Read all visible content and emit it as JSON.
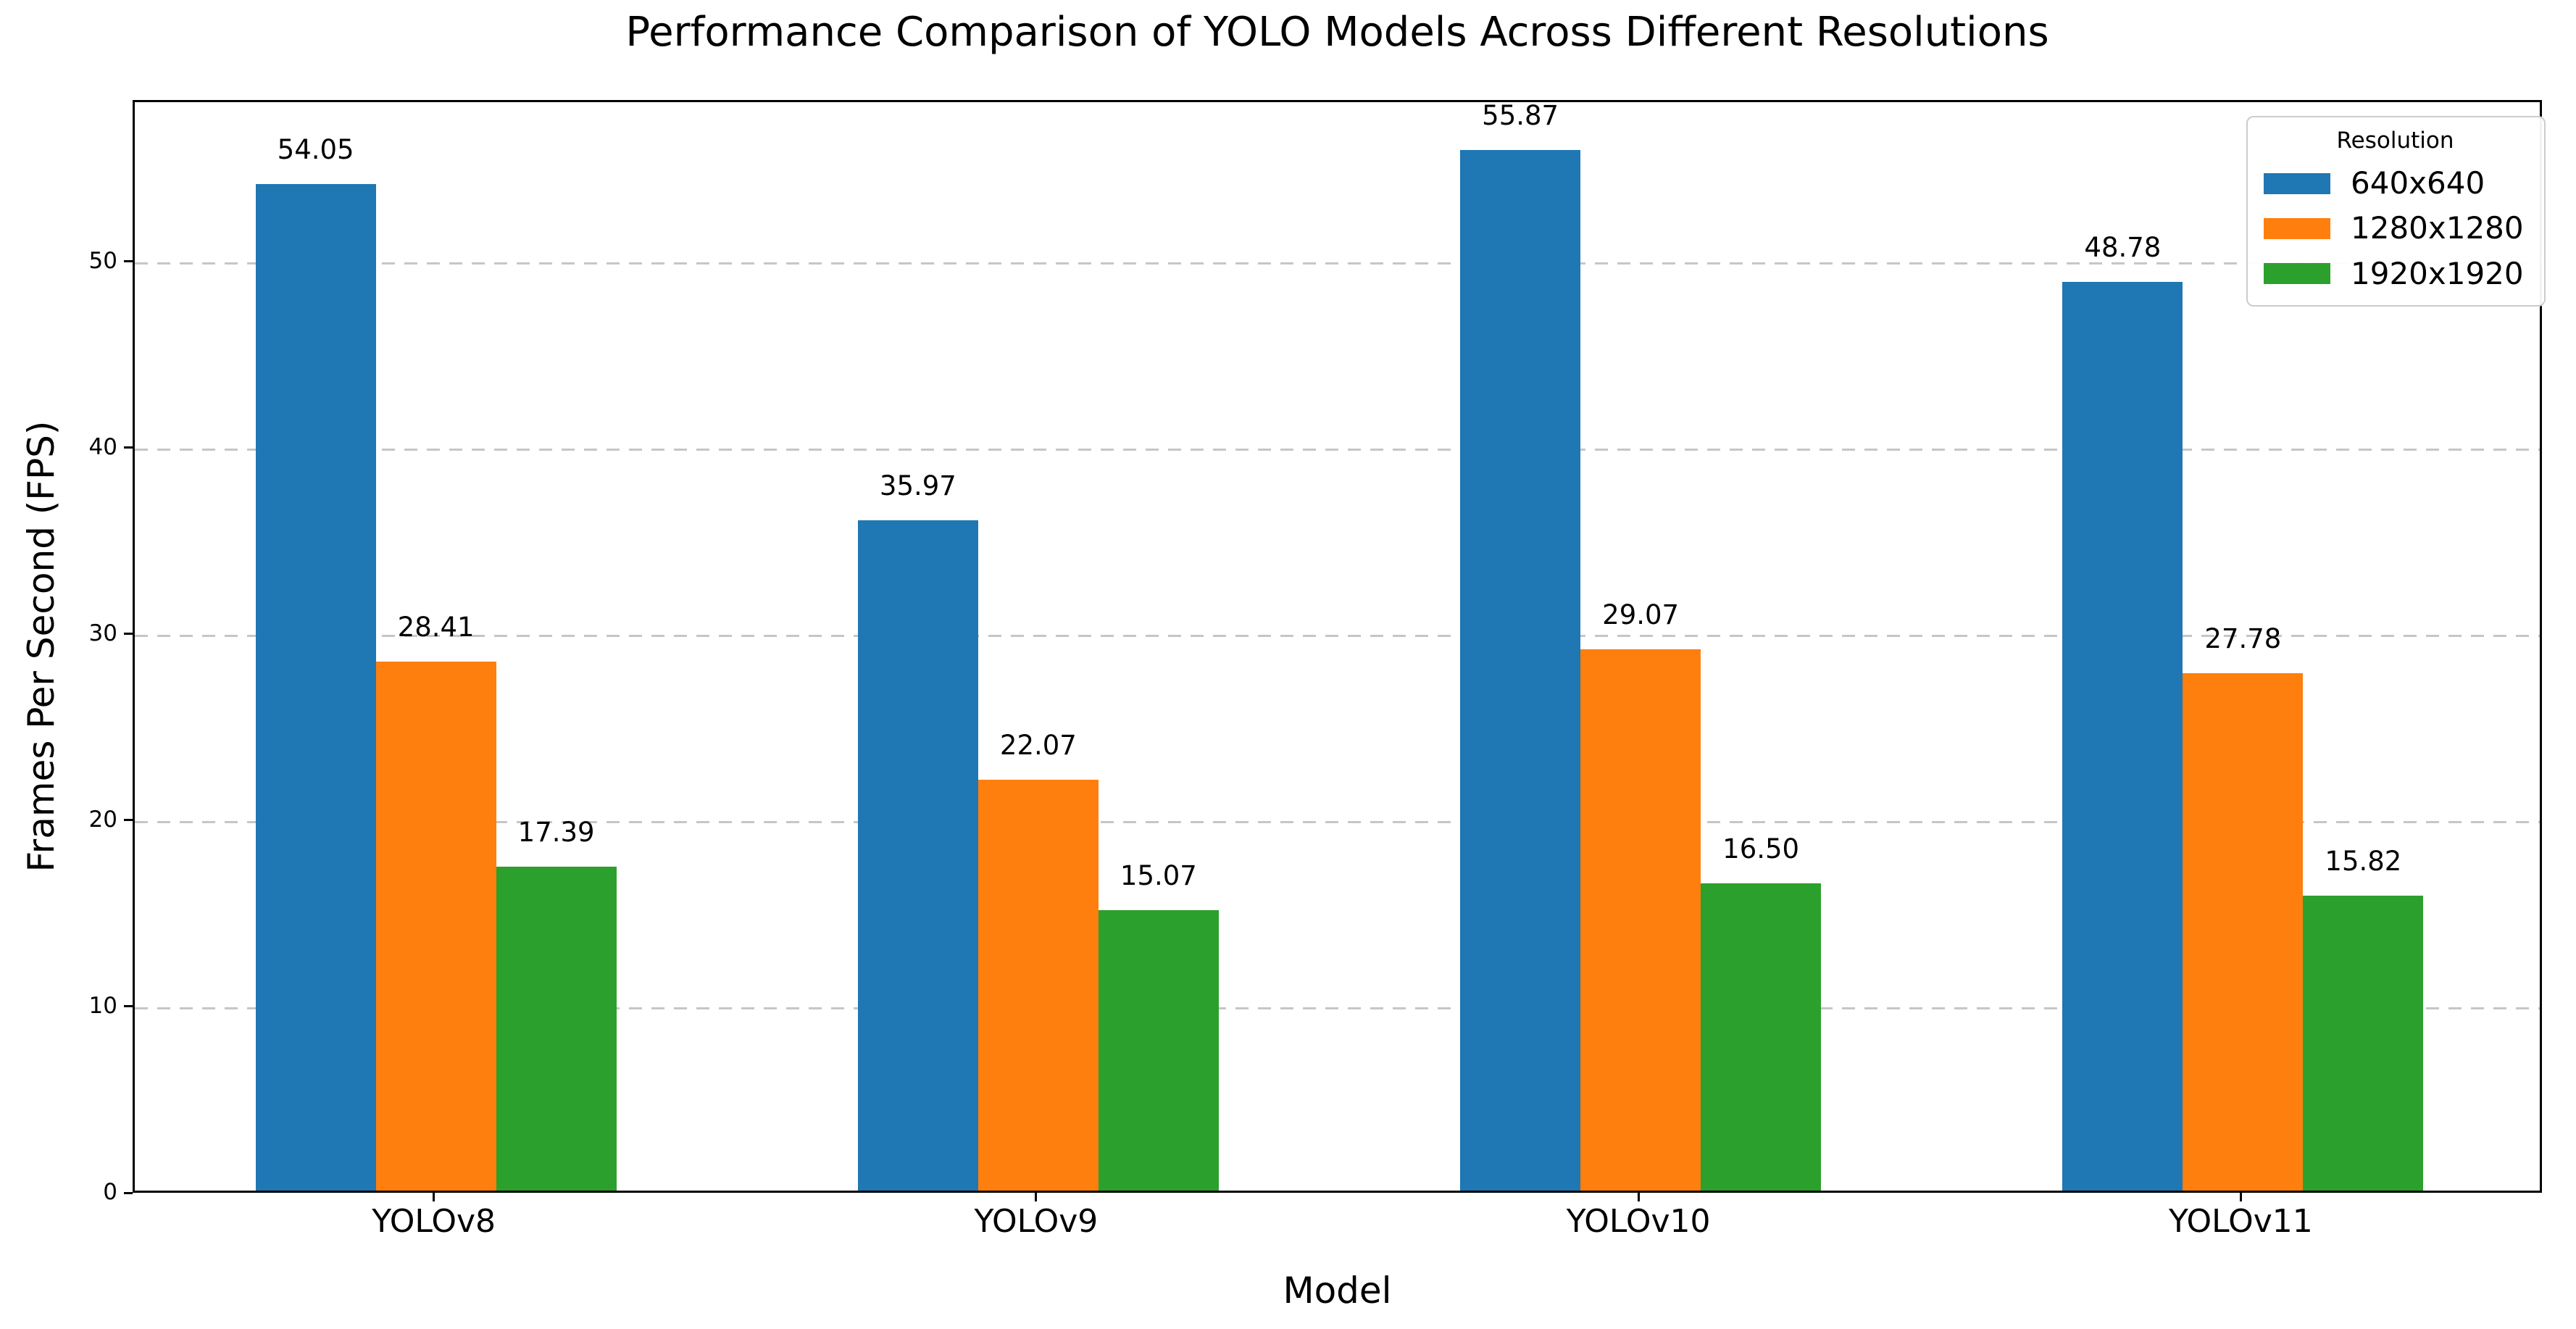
{
  "chart_data": {
    "type": "bar",
    "title": "Performance Comparison of YOLO Models Across Different Resolutions",
    "xlabel": "Model",
    "ylabel": "Frames Per Second (FPS)",
    "categories": [
      "YOLOv8",
      "YOLOv9",
      "YOLOv10",
      "YOLOv11"
    ],
    "series": [
      {
        "name": "640x640",
        "color": "#1f77b4",
        "values": [
          54.05,
          35.97,
          55.87,
          48.78
        ]
      },
      {
        "name": "1280x1280",
        "color": "#ff7f0e",
        "values": [
          28.41,
          22.07,
          29.07,
          27.78
        ]
      },
      {
        "name": "1920x1920",
        "color": "#2ca02c",
        "values": [
          17.39,
          15.07,
          16.5,
          15.82
        ]
      }
    ],
    "value_labels": [
      [
        "54.05",
        "35.97",
        "55.87",
        "48.78"
      ],
      [
        "28.41",
        "22.07",
        "29.07",
        "27.78"
      ],
      [
        "17.39",
        "15.07",
        "16.50",
        "15.82"
      ]
    ],
    "ylim": [
      0,
      58.66
    ],
    "yticks": [
      0,
      10,
      20,
      30,
      40,
      50
    ],
    "grid": true,
    "grid_style": "dashed",
    "legend": {
      "title": "Resolution",
      "position": "upper right"
    },
    "colors": {
      "spine": "#000000",
      "gridline": "#c6c6c6",
      "text": "#000000",
      "legend_border": "#cccccc",
      "background": "#ffffff"
    }
  }
}
